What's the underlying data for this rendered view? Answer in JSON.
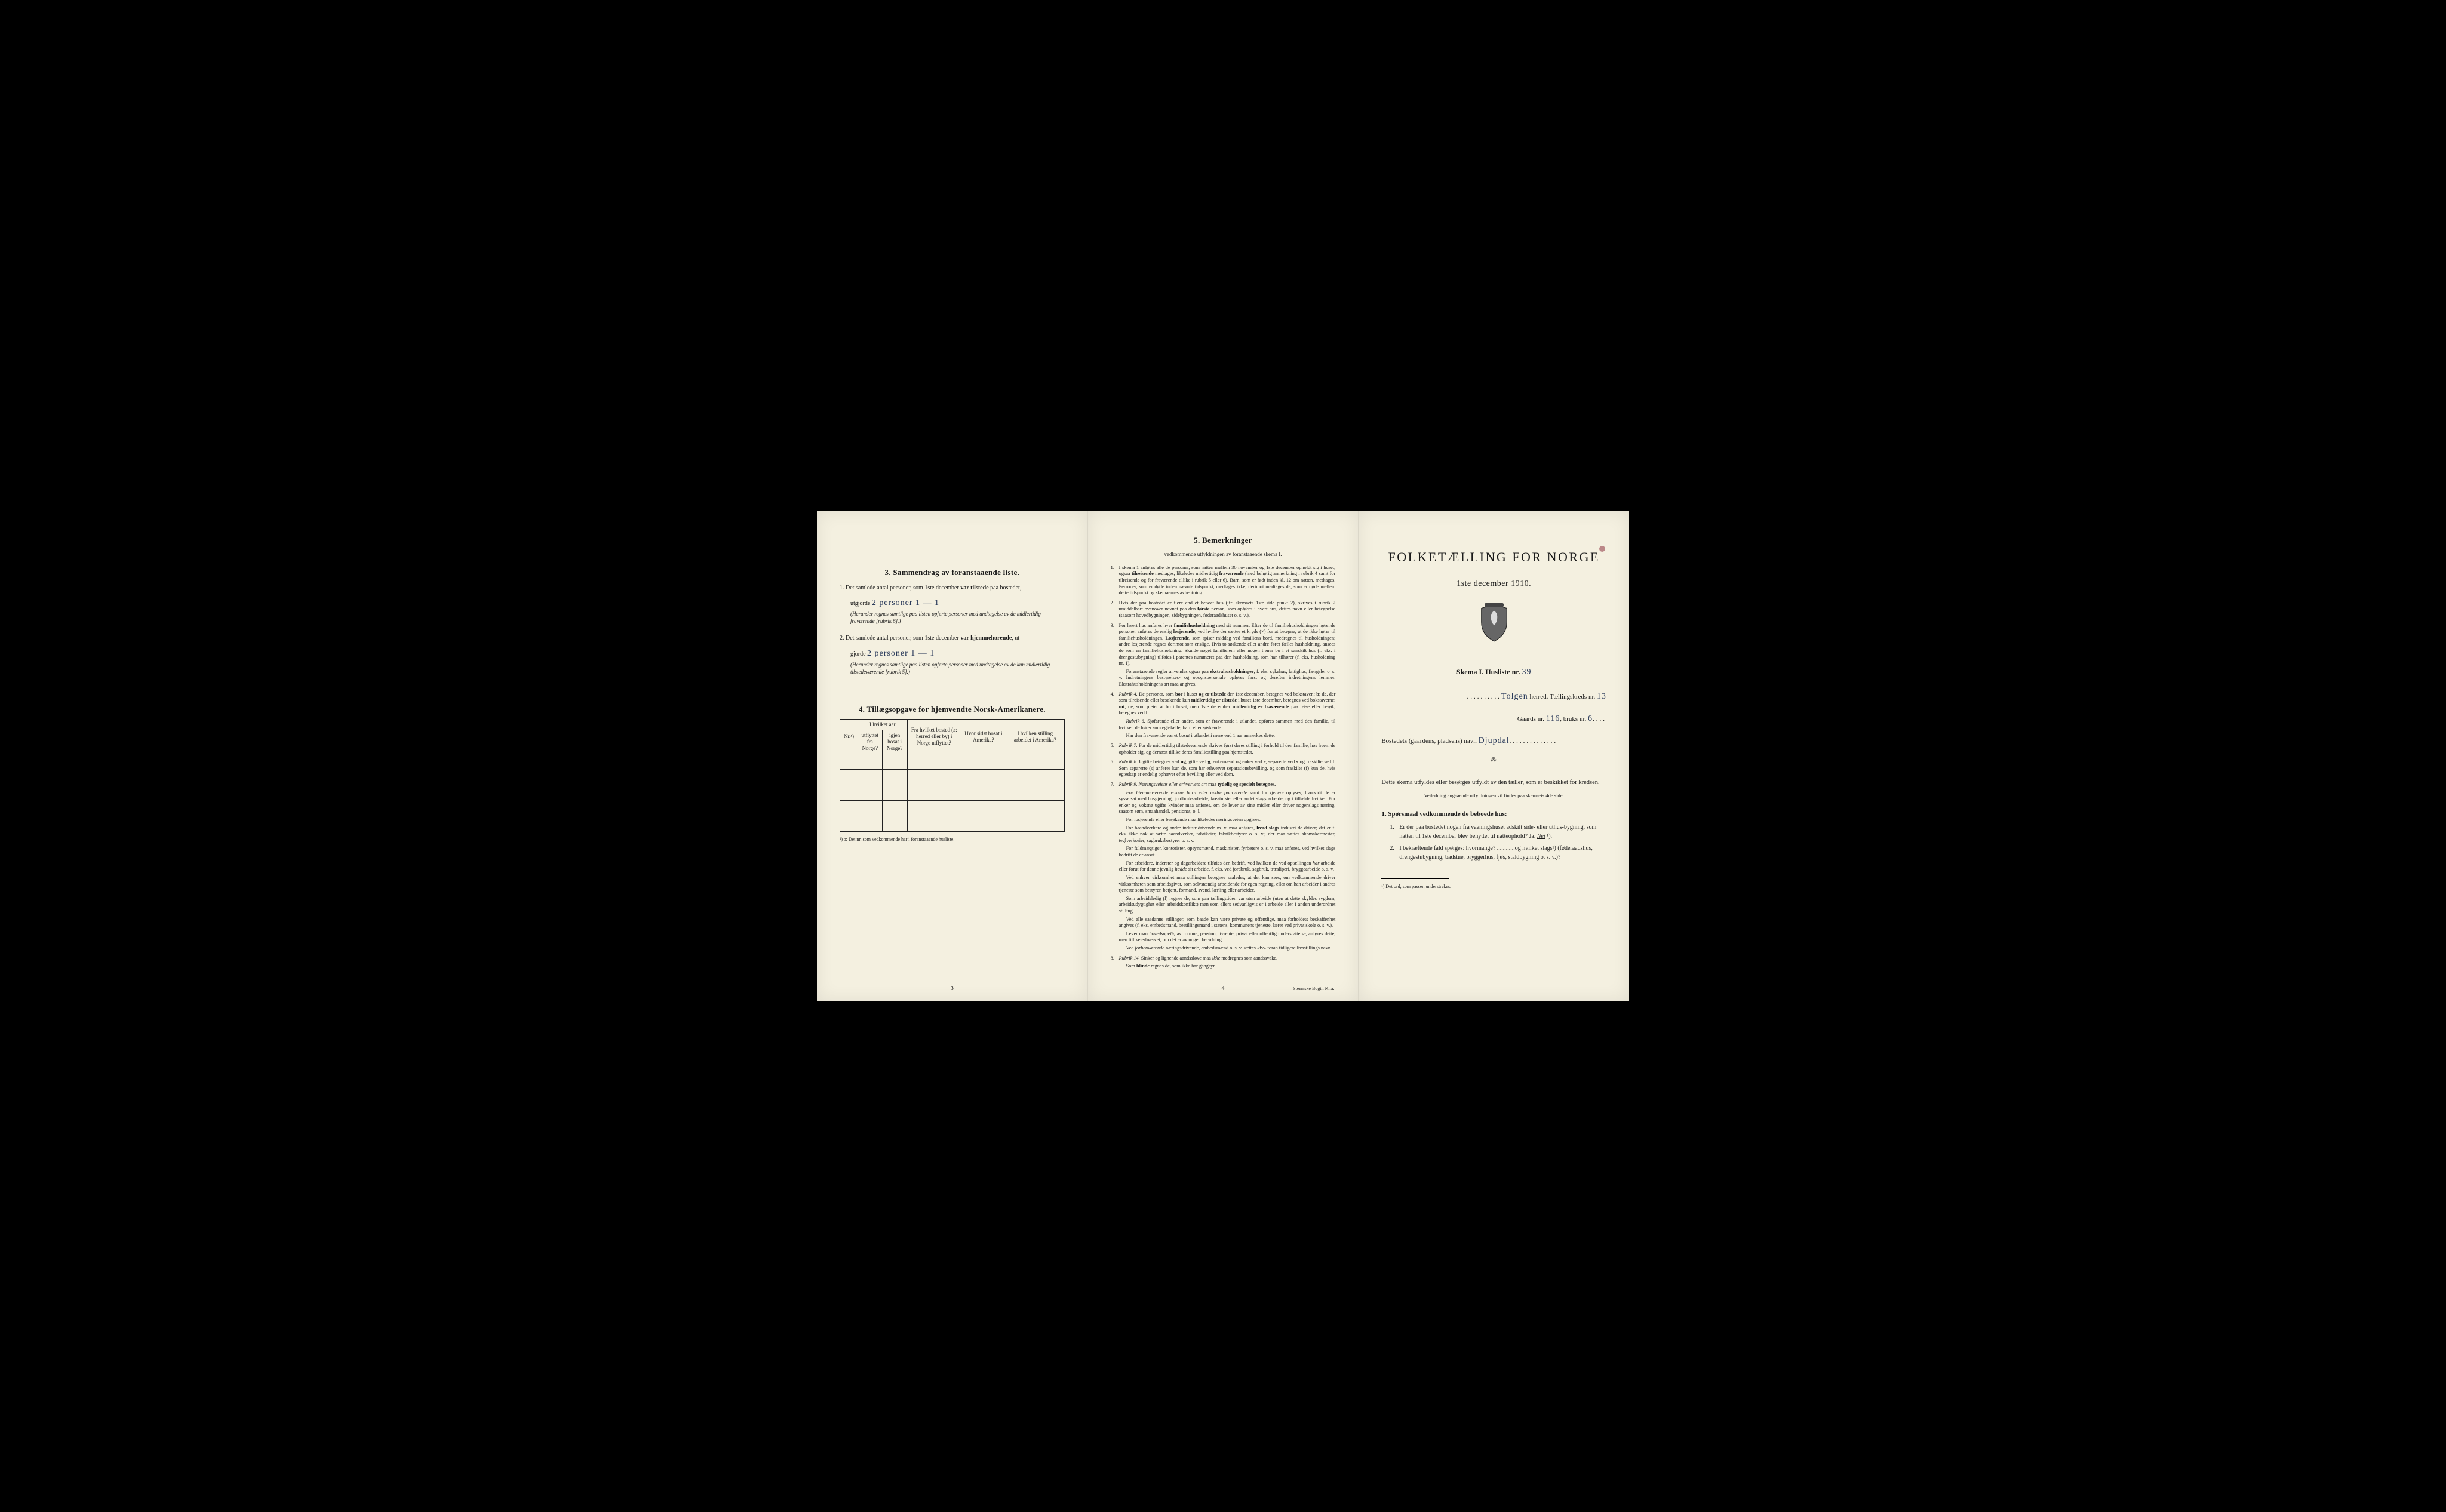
{
  "colors": {
    "paper": "#f4f0e0",
    "ink": "#1a1a1a",
    "handwriting": "#2a3a5a",
    "border": "#222222",
    "background": "#000000"
  },
  "typography": {
    "body_fontsize_pt": 10,
    "small_fontsize_pt": 8,
    "heading_fontsize_pt": 13,
    "title_fontsize_pt": 22
  },
  "page3": {
    "heading": "3.   Sammendrag av foranstaaende liste.",
    "item1_lead": "1.  Det samlede antal personer, som 1ste december ",
    "item1_bold": "var tilstede",
    "item1_tail": " paa bostedet,",
    "utgjorde": "utgjorde ",
    "hand1": "2 personer   1 — 1",
    "item1_note": "(Herunder regnes samtlige paa listen opførte personer med undtagelse av de midlertidig fraværende [rubrik 6].)",
    "item2_lead": "2.  Det samlede antal personer, som 1ste december ",
    "item2_bold": "var hjemmehørende",
    "item2_tail": ", ut-",
    "hand2": "2 personer   1 — 1",
    "item2_note": "(Herunder regnes samtlige paa listen opførte personer med undtagelse av de kun midlertidig tilstedeværende [rubrik 5].)",
    "heading4": "4.  Tillægsopgave for hjemvendte Norsk-Amerikanere.",
    "th_nr": "Nr.¹)",
    "th_utfl_hdr": "I hvilket aar",
    "th_utfl_a": "utflyttet fra Norge?",
    "th_utfl_b": "igjen bosat i Norge?",
    "th_bosted": "Fra hvilket bosted (ɔ: herred eller by) i Norge utflyttet?",
    "th_sidst": "Hvor sidst bosat i Amerika?",
    "th_stilling": "I hvilken stilling arbeidet i Amerika?",
    "footnote": "¹) ɔ: Det nr. som vedkommende har i foranstaaende husliste.",
    "pagenum": "3"
  },
  "page4": {
    "heading": "5.   Bemerkninger",
    "subheading": "vedkommende utfyldningen av foranstaaende skema I.",
    "items": [
      {
        "n": "1.",
        "t": "I skema 1 anføres alle de personer, som natten mellem 30 november og 1ste december opholdt sig i huset; ogsaa <b>tilreisende</b> medtages; likeledes midlertidig <b>fraværende</b> (med behørig anmerkning i rubrik 4 samt for tilreisende og for fraværende tillike i rubrik 5 eller 6). Barn, som er født inden kl. 12 om natten, medtages. Personer, som er døde inden nævnte tidspunkt, medtages ikke; derimot medtages de, som er døde mellem dette tidspunkt og skemaernes avhentning."
      },
      {
        "n": "2.",
        "t": "Hvis der paa bostedet er flere end ét beboet hus (jfr. skemaets 1ste side punkt 2), skrives i rubrik 2 umiddelbart ovenover navnet paa den <b>første</b> person, som opføres i hvert hus, dettes navn eller betegnelse (saasom hovedbygningen, sidebygningen, føderaadshuset o. s. v.)."
      },
      {
        "n": "3.",
        "t": "For hvert hus anføres hver <b>familiehusholdning</b> med sit nummer. Efter de til familiehusholdningen hørende personer anføres de enslig <b>losjerende</b>, ved hvilke der sættes et kryds (×) for at betegne, at de ikke hører til familiehusholdningen. <b>Losjerende</b>, som spiser middag ved familiens bord, medregnes til husholdningen; andre losjerende regnes derimot som enslige. Hvis to søskende eller andre fører fælles husholdning, ansees de som en familiehusholdning. Skulde noget familielem eller nogen tjener bo i et særskilt hus (f. eks. i drengestubygning) tilføies i parentes nummeret paa den husholdning, som han tilhører (f. eks. husholdning nr. 1).<div class='para'>Foranstaaende regler anvendes ogsaa paa <b>ekstrahusholdninger</b>, f. eks. sykehus, fattighus, fængsler o. s. v. Indretningens bestyrelses- og opsynspersonale opføres først og derefter indretningens lemmer. Ekstrahusholdningens art maa angives.</div>"
      },
      {
        "n": "4.",
        "t": "<i>Rubrik 4.</i> De personer, som <b>bor</b> i huset <b>og er tilstede</b> der 1ste december, betegnes ved bokstaven: <b>b</b>; de, der som tilreisende eller besøkende kun <b>midlertidig er tilstede</b> i huset 1ste december, betegnes ved bokstaverne: <b>mt</b>; de, som pleier at bo i huset, men 1ste december <b>midlertidig er fraværende</b> paa reise eller besøk, betegnes ved <b>f</b>.<div class='para'><i>Rubrik 6.</i> Sjøfarende eller andre, som er fraværende i utlandet, opføres sammen med den familie, til hvilken de hører som egtefælle, barn eller søskende.</div><div class='para'>Har den fraværende været <i>bosat</i> i utlandet i mere end 1 aar anmerkes dette.</div>"
      },
      {
        "n": "5.",
        "t": "<i>Rubrik 7.</i> For de midlertidig tilstedeværende skrives først deres stilling i forhold til den familie, hos hvem de opholder sig, og dernæst tillike deres familiestilling paa hjemstedet."
      },
      {
        "n": "6.",
        "t": "<i>Rubrik 8.</i> Ugifte betegnes ved <b>ug</b>, gifte ved <b>g</b>, enkemænd og enker ved <b>e</b>, separerte ved <b>s</b> og fraskilte ved <b>f</b>. Som separerte (s) anføres kun de, som har erhvervet separationsbevilling, og som fraskilte (f) kun de, hvis egteskap er endelig ophævet efter bevilling eller ved dom."
      },
      {
        "n": "7.",
        "t": "<i>Rubrik 9.</i> <i>Næringsveiens eller erhvervets art</i> maa <b>tydelig og specielt betegnes.</b><div class='para'><i>For hjemmeværende voksne barn eller andre paarørende</i> samt for <i>tjenere</i> oplyses, hvorvidt de er sysselsat med husgjerning, jordbruksarbeide, kreaturstel eller andet slags arbeide, og i tilfælde hvilket. For enker og voksne ugifte kvinder maa anføres, om de lever av sine midler eller driver nogenslags næring, saasom søm, smaahandel, pensionat, o. l.</div><div class='para'>For losjerende eller besøkende maa likeledes næringsveien opgives.</div><div class='para'>For haandverkere og andre industridrivende m. v. maa anføres, <b>hvad slags</b> industri de driver; det er f. eks. ikke nok at sætte haandverker, fabrikeier, fabrikbestyrer o. s. v.; der maa sættes skomakermester, teglverkseier, sagbruksbestyrer o. s. v.</div><div class='para'>For fuldmægtiger, kontorister, opsynsmænd, maskinister, fyrbøtere o. s. v. maa anføres, ved hvilket slags bedrift de er ansat.</div><div class='para'>For arbeidere, inderster og dagarbeidere tilføies den bedrift, ved hvilken de ved optællingen <i>har</i> arbeide eller forut for denne jevnlig <i>hadde</i> sit arbeide, f. eks. ved jordbruk, sagbruk, træsliperi, bryggearbeide o. s. v.</div><div class='para'>Ved enhver virksomhet maa stillingen betegnes saaledes, at det kan sees, om vedkommende driver virksomheten som arbeidsgiver, som selvstændig arbeidende for egen regning, eller om han arbeider i andres tjeneste som bestyrer, betjent, formand, svend, lærling eller arbeider.</div><div class='para'>Som arbeidsledig (l) regnes de, som paa tællingstiden var uten arbeide (uten at dette skyldes sygdom, arbeidsudygtighet eller arbeidskonflikt) men som ellers sedvanligvis er i arbeide eller i anden underordnet stilling.</div><div class='para'>Ved alle saadanne stillinger, som baade kan være private og offentlige, maa forholdets beskaffenhet angives (f. eks. embedsmand, bestillingsmand i statens, kommunens tjeneste, lærer ved privat skole o. s. v.).</div><div class='para'>Lever man <i>hovedsagelig</i> av formue, pension, livrente, privat eller offentlig understøttelse, anføres dette, men tillike erhvervet, om det er av nogen betydning.</div><div class='para'>Ved <i>forhenværende</i> næringsdrivende, embedsmænd o. s. v. sættes «fv» foran tidligere livsstillings navn.</div>"
      },
      {
        "n": "8.",
        "t": "<i>Rubrik 14.</i> Sinker og lignende aandssløve maa <i>ikke</i> medregnes som aandssvake.<div class='para'>Som <b>blinde</b> regnes de, som ikke har gangsyn.</div>"
      }
    ],
    "pagenum": "4",
    "printer": "Steen'ske Bogtr. Kr.a."
  },
  "page_r": {
    "title": "FOLKETÆLLING FOR NORGE",
    "date": "1ste december 1910.",
    "skema_label": "Skema I.   Husliste nr. ",
    "husliste_nr": "39",
    "herred_label": " herred.   Tællingskreds nr. ",
    "herred_name": "Tolgen",
    "kreds_nr": "13",
    "gaards_label": "Gaards nr. ",
    "gaards_nr": "116",
    "bruks_label": ",   bruks nr. ",
    "bruks_nr": "6",
    "bosted_label": "Bostedets (gaardens, pladsens) navn ",
    "bosted_name": "Djupdal",
    "intro": "Dette skema utfyldes eller besørges utfyldt av den tæller, som er beskikket for kredsen.",
    "intro_note": "Veiledning angaaende utfyldningen vil findes paa skemaets 4de side.",
    "q_head": "1.  Spørsmaal vedkommende de beboede hus:",
    "q1": "Er der paa bostedet nogen fra vaaningshuset adskilt side- eller uthus-bygning, som natten til 1ste december blev benyttet til natteophold?   Ja.   ",
    "q1_answer": "Nei",
    "q1_sup": " ¹).",
    "q2": "I bekræftende fald spørges: hvormange? ............og hvilket slags¹) (føderaadshus, drengestubygning, badstue, bryggerhus, fjøs, staldbygning o. s. v.)?",
    "footnote": "¹) Det ord, som passer, understrekes."
  }
}
